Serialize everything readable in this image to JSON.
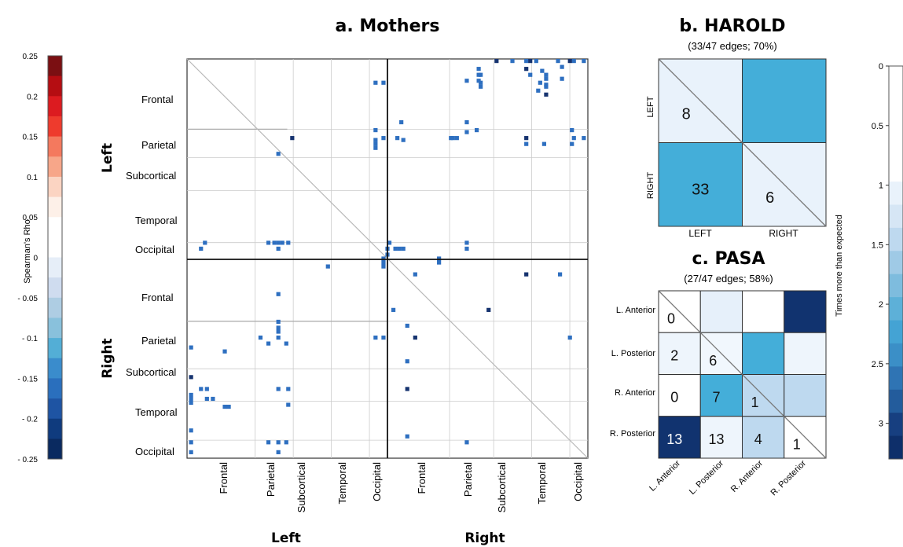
{
  "colors": {
    "matrix_cell": "#2e6fc0",
    "matrix_cell_dark": "#16336f",
    "grid_line": "#cccccc",
    "divider": "#222222"
  },
  "colorbar_left": {
    "label": "Spearman's Rho",
    "ticks": [
      "0.25",
      "0.2",
      "0.15",
      "0.1",
      "0.05",
      "0",
      "- 0.05",
      "- 0.1",
      "- 0.15",
      "- 0.2",
      "- 0.25"
    ],
    "tick_values": [
      0.25,
      0.2,
      0.15,
      0.1,
      0.05,
      0,
      -0.05,
      -0.1,
      -0.15,
      -0.2,
      -0.25
    ],
    "bands": [
      "#7b0f12",
      "#b50d12",
      "#dc1b20",
      "#ee3b2d",
      "#f4795e",
      "#f7a689",
      "#fbd4c2",
      "#fdf0e8",
      "#ffffff",
      "#ffffff",
      "#e6eef8",
      "#cfdcef",
      "#aecde3",
      "#89c1dc",
      "#53aed6",
      "#3a8ccc",
      "#2a6fbd",
      "#1e54a3",
      "#0f3b7e",
      "#0a2a60"
    ]
  },
  "panel_a": {
    "title": "a. Mothers",
    "group_labels": [
      "Left",
      "Right"
    ],
    "row_labels": [
      "Frontal",
      "Parietal",
      "Subcortical",
      "Temporal",
      "Occipital",
      "Frontal",
      "Parietal",
      "Subcortical",
      "Temporal",
      "Occipital"
    ],
    "col_labels": [
      "Frontal",
      "Parietal",
      "Subcortical",
      "Temporal",
      "Occipital",
      "Frontal",
      "Parietal",
      "Subcortical",
      "Temporal",
      "Occipital"
    ],
    "bottom_group_labels": [
      "Left",
      "Right"
    ]
  },
  "chart_data": [
    {
      "type": "heatmap",
      "title": "a. Mothers",
      "description_of_axes": "Row and column groups: Left / Right hemisphere lobes",
      "rows": [
        "Frontal",
        "Parietal",
        "Subcortical",
        "Temporal",
        "Occipital",
        "Frontal",
        "Parietal",
        "Subcortical",
        "Temporal",
        "Occipital"
      ],
      "cols": [
        "Frontal",
        "Parietal",
        "Subcortical",
        "Temporal",
        "Occipital",
        "Frontal",
        "Parietal",
        "Subcortical",
        "Temporal",
        "Occipital"
      ],
      "row_groups": [
        "Left",
        "Right"
      ],
      "col_groups": [
        "Left",
        "Right"
      ],
      "colorbar": {
        "label": "Spearman's Rho",
        "range": [
          -0.25,
          0.25
        ]
      },
      "significant_edges_sample": [
        {
          "rf": 0.015,
          "cf": 0.94,
          "rho": -0.2
        },
        {
          "rf": 0.02,
          "cf": 0.85,
          "rho": -0.25
        },
        {
          "rf": 0.02,
          "cf": 0.73,
          "rho": -0.2
        },
        {
          "rf": 0.0,
          "cf": 0.815,
          "rho": -0.2
        },
        {
          "rf": 0.0,
          "cf": 0.85,
          "rho": -0.2
        },
        {
          "rf": 0.0,
          "cf": 0.875,
          "rho": -0.2
        },
        {
          "rf": 0.0,
          "cf": 0.93,
          "rho": -0.2
        },
        {
          "rf": 0.0,
          "cf": 0.97,
          "rho": -0.2
        },
        {
          "rf": 0.0,
          "cf": 0.995,
          "rho": -0.2
        },
        {
          "rf": 0.025,
          "cf": 0.89,
          "rho": -0.2
        },
        {
          "rf": 0.045,
          "cf": 0.9,
          "rho": -0.2
        },
        {
          "rf": 0.035,
          "cf": 0.735,
          "rho": -0.2
        },
        {
          "rf": 0.055,
          "cf": 0.885,
          "rho": -0.2
        },
        {
          "rf": 0.085,
          "cf": 0.9,
          "rho": -0.25
        },
        {
          "rf": 0.05,
          "cf": 0.7,
          "rho": -0.2
        },
        {
          "rf": 0.05,
          "cf": 0.73,
          "rho": -0.2
        },
        {
          "rf": 0.035,
          "cf": 0.73,
          "rho": -0.2
        },
        {
          "rf": 0.055,
          "cf": 0.735,
          "rho": -0.2
        },
        {
          "rf": 0.065,
          "cf": 0.735,
          "rho": -0.2
        },
        {
          "rf": 0.075,
          "cf": 0.88,
          "rho": -0.2
        },
        {
          "rf": 0.035,
          "cf": 0.9,
          "rho": -0.2
        },
        {
          "rf": 0.06,
          "cf": 0.9,
          "rho": -0.2
        },
        {
          "rf": 0.045,
          "cf": 0.94,
          "rho": -0.2
        },
        {
          "rf": 0.065,
          "cf": 0.9,
          "rho": -0.2
        },
        {
          "rf": 0.0,
          "cf": 0.96,
          "rho": -0.25
        },
        {
          "rf": 0.0,
          "cf": 0.86,
          "rho": -0.25
        },
        {
          "rf": 0.0,
          "cf": 0.775,
          "rho": -0.25
        },
        {
          "rf": 0.055,
          "cf": 0.47,
          "rho": -0.2
        },
        {
          "rf": 0.055,
          "cf": 0.49,
          "rho": -0.2
        },
        {
          "rf": 0.035,
          "cf": 0.86,
          "rho": -0.2
        },
        {
          "rf": 0.175,
          "cf": 0.47,
          "rho": -0.2
        },
        {
          "rf": 0.22,
          "cf": 0.47,
          "rho": -0.2
        },
        {
          "rf": 0.2,
          "cf": 0.47,
          "rho": -0.2
        },
        {
          "rf": 0.21,
          "cf": 0.47,
          "rho": -0.2
        },
        {
          "rf": 0.195,
          "cf": 0.525,
          "rho": -0.2
        },
        {
          "rf": 0.195,
          "cf": 0.49,
          "rho": -0.2
        },
        {
          "rf": 0.2,
          "cf": 0.54,
          "rho": -0.2
        },
        {
          "rf": 0.195,
          "cf": 0.66,
          "rho": -0.2
        },
        {
          "rf": 0.195,
          "cf": 0.665,
          "rho": -0.2
        },
        {
          "rf": 0.195,
          "cf": 0.675,
          "rho": -0.2
        },
        {
          "rf": 0.18,
          "cf": 0.7,
          "rho": -0.2
        },
        {
          "rf": 0.155,
          "cf": 0.7,
          "rho": -0.2
        },
        {
          "rf": 0.175,
          "cf": 0.725,
          "rho": -0.2
        },
        {
          "rf": 0.195,
          "cf": 0.85,
          "rho": -0.25
        },
        {
          "rf": 0.195,
          "cf": 0.97,
          "rho": -0.2
        },
        {
          "rf": 0.21,
          "cf": 0.85,
          "rho": -0.2
        },
        {
          "rf": 0.21,
          "cf": 0.895,
          "rho": -0.2
        },
        {
          "rf": 0.175,
          "cf": 0.965,
          "rho": -0.2
        },
        {
          "rf": 0.195,
          "cf": 0.995,
          "rho": -0.2
        },
        {
          "rf": 0.21,
          "cf": 0.965,
          "rho": -0.2
        },
        {
          "rf": 0.155,
          "cf": 0.535,
          "rho": -0.2
        },
        {
          "rf": 0.195,
          "cf": 0.26,
          "rho": -0.25
        },
        {
          "rf": 0.235,
          "cf": 0.225,
          "rho": -0.2
        },
        {
          "rf": 0.46,
          "cf": 0.04,
          "rho": -0.2
        },
        {
          "rf": 0.46,
          "cf": 0.2,
          "rho": -0.2
        },
        {
          "rf": 0.46,
          "cf": 0.215,
          "rho": -0.2
        },
        {
          "rf": 0.46,
          "cf": 0.225,
          "rho": -0.2
        },
        {
          "rf": 0.46,
          "cf": 0.235,
          "rho": -0.2
        },
        {
          "rf": 0.46,
          "cf": 0.25,
          "rho": -0.2
        },
        {
          "rf": 0.475,
          "cf": 0.03,
          "rho": -0.2
        },
        {
          "rf": 0.475,
          "cf": 0.225,
          "rho": -0.2
        },
        {
          "rf": 0.46,
          "cf": 0.7,
          "rho": -0.2
        },
        {
          "rf": 0.475,
          "cf": 0.7,
          "rho": -0.2
        },
        {
          "rf": 0.46,
          "cf": 0.505,
          "rho": -0.2
        },
        {
          "rf": 0.475,
          "cf": 0.5,
          "rho": -0.2
        },
        {
          "rf": 0.475,
          "cf": 0.52,
          "rho": -0.2
        },
        {
          "rf": 0.475,
          "cf": 0.53,
          "rho": -0.2
        },
        {
          "rf": 0.475,
          "cf": 0.54,
          "rho": -0.2
        },
        {
          "rf": 0.49,
          "cf": 0.5,
          "rho": -0.2
        },
        {
          "rf": 0.5,
          "cf": 0.49,
          "rho": -0.2
        },
        {
          "rf": 0.51,
          "cf": 0.49,
          "rho": -0.2
        },
        {
          "rf": 0.52,
          "cf": 0.49,
          "rho": -0.2
        },
        {
          "rf": 0.52,
          "cf": 0.35,
          "rho": -0.2
        },
        {
          "rf": 0.5,
          "cf": 0.63,
          "rho": -0.2
        },
        {
          "rf": 0.51,
          "cf": 0.63,
          "rho": -0.2
        },
        {
          "rf": 0.54,
          "cf": 0.57,
          "rho": -0.2
        },
        {
          "rf": 0.54,
          "cf": 0.85,
          "rho": -0.25
        },
        {
          "rf": 0.54,
          "cf": 0.935,
          "rho": -0.2
        },
        {
          "rf": 0.59,
          "cf": 0.225,
          "rho": -0.2
        },
        {
          "rf": 0.63,
          "cf": 0.515,
          "rho": -0.2
        },
        {
          "rf": 0.63,
          "cf": 0.755,
          "rho": -0.25
        },
        {
          "rf": 0.66,
          "cf": 0.225,
          "rho": -0.2
        },
        {
          "rf": 0.675,
          "cf": 0.225,
          "rho": -0.2
        },
        {
          "rf": 0.685,
          "cf": 0.225,
          "rho": -0.2
        },
        {
          "rf": 0.67,
          "cf": 0.55,
          "rho": -0.2
        },
        {
          "rf": 0.7,
          "cf": 0.18,
          "rho": -0.2
        },
        {
          "rf": 0.7,
          "cf": 0.225,
          "rho": -0.2
        },
        {
          "rf": 0.7,
          "cf": 0.47,
          "rho": -0.2
        },
        {
          "rf": 0.7,
          "cf": 0.49,
          "rho": -0.2
        },
        {
          "rf": 0.7,
          "cf": 0.96,
          "rho": -0.2
        },
        {
          "rf": 0.7,
          "cf": 0.57,
          "rho": -0.25
        },
        {
          "rf": 0.715,
          "cf": 0.2,
          "rho": -0.2
        },
        {
          "rf": 0.715,
          "cf": 0.245,
          "rho": -0.2
        },
        {
          "rf": 0.725,
          "cf": 0.005,
          "rho": -0.2
        },
        {
          "rf": 0.735,
          "cf": 0.09,
          "rho": -0.2
        },
        {
          "rf": 0.76,
          "cf": 0.55,
          "rho": -0.2
        },
        {
          "rf": 0.8,
          "cf": 0.005,
          "rho": -0.25
        },
        {
          "rf": 0.83,
          "cf": 0.03,
          "rho": -0.2
        },
        {
          "rf": 0.83,
          "cf": 0.045,
          "rho": -0.2
        },
        {
          "rf": 0.83,
          "cf": 0.225,
          "rho": -0.2
        },
        {
          "rf": 0.83,
          "cf": 0.25,
          "rho": -0.2
        },
        {
          "rf": 0.83,
          "cf": 0.55,
          "rho": -0.25
        },
        {
          "rf": 0.845,
          "cf": 0.005,
          "rho": -0.2
        },
        {
          "rf": 0.855,
          "cf": 0.005,
          "rho": -0.2
        },
        {
          "rf": 0.855,
          "cf": 0.045,
          "rho": -0.2
        },
        {
          "rf": 0.855,
          "cf": 0.06,
          "rho": -0.2
        },
        {
          "rf": 0.865,
          "cf": 0.005,
          "rho": -0.2
        },
        {
          "rf": 0.87,
          "cf": 0.25,
          "rho": -0.2
        },
        {
          "rf": 0.875,
          "cf": 0.09,
          "rho": -0.2
        },
        {
          "rf": 0.875,
          "cf": 0.1,
          "rho": -0.2
        },
        {
          "rf": 0.935,
          "cf": 0.005,
          "rho": -0.2
        },
        {
          "rf": 0.95,
          "cf": 0.55,
          "rho": -0.2
        },
        {
          "rf": 0.965,
          "cf": 0.2,
          "rho": -0.2
        },
        {
          "rf": 0.965,
          "cf": 0.225,
          "rho": -0.2
        },
        {
          "rf": 0.965,
          "cf": 0.245,
          "rho": -0.2
        },
        {
          "rf": 0.965,
          "cf": 0.005,
          "rho": -0.2
        },
        {
          "rf": 0.965,
          "cf": 0.7,
          "rho": -0.2
        },
        {
          "rf": 0.99,
          "cf": 0.225,
          "rho": -0.2
        },
        {
          "rf": 0.99,
          "cf": 0.005,
          "rho": -0.2
        }
      ]
    },
    {
      "type": "heatmap",
      "title": "b. HAROLD",
      "subtitle": "(33/47 edges; 70%)",
      "rows": [
        "LEFT",
        "RIGHT"
      ],
      "cols": [
        "LEFT",
        "RIGHT"
      ],
      "cells": [
        {
          "row": "LEFT",
          "col": "LEFT",
          "label": "8",
          "expected_ratio": 0.8
        },
        {
          "row": "LEFT",
          "col": "RIGHT",
          "label": "",
          "expected_ratio": 2.0
        },
        {
          "row": "RIGHT",
          "col": "LEFT",
          "label": "33",
          "expected_ratio": 2.0
        },
        {
          "row": "RIGHT",
          "col": "RIGHT",
          "label": "6",
          "expected_ratio": 0.8
        }
      ]
    },
    {
      "type": "heatmap",
      "title": "c. PASA",
      "subtitle": "(27/47 edges; 58%)",
      "rows": [
        "L. Anterior",
        "L. Posterior",
        "R. Anterior",
        "R. Posterior"
      ],
      "cols": [
        "L. Anterior",
        "L. Posterior",
        "R. Anterior",
        "R. Posterior"
      ],
      "cells": [
        {
          "row": "L. Anterior",
          "col": "L. Anterior",
          "label": "0",
          "expected_ratio": 0
        },
        {
          "row": "L. Anterior",
          "col": "L. Posterior",
          "label": "",
          "expected_ratio": 0.8
        },
        {
          "row": "L. Anterior",
          "col": "R. Anterior",
          "label": "",
          "expected_ratio": 0
        },
        {
          "row": "L. Anterior",
          "col": "R. Posterior",
          "label": "",
          "expected_ratio": 3.2
        },
        {
          "row": "L. Posterior",
          "col": "L. Anterior",
          "label": "2",
          "expected_ratio": 0.7
        },
        {
          "row": "L. Posterior",
          "col": "L. Posterior",
          "label": "6",
          "expected_ratio": 0.6
        },
        {
          "row": "L. Posterior",
          "col": "R. Anterior",
          "label": "",
          "expected_ratio": 2.0
        },
        {
          "row": "L. Posterior",
          "col": "R. Posterior",
          "label": "",
          "expected_ratio": 0.7
        },
        {
          "row": "R. Anterior",
          "col": "L. Anterior",
          "label": "0",
          "expected_ratio": 0
        },
        {
          "row": "R. Anterior",
          "col": "L. Posterior",
          "label": "7",
          "expected_ratio": 2.0
        },
        {
          "row": "R. Anterior",
          "col": "R. Anterior",
          "label": "1",
          "expected_ratio": 1.0
        },
        {
          "row": "R. Anterior",
          "col": "R. Posterior",
          "label": "",
          "expected_ratio": 1.0
        },
        {
          "row": "R. Posterior",
          "col": "L. Anterior",
          "label": "13",
          "expected_ratio": 3.2
        },
        {
          "row": "R. Posterior",
          "col": "L. Posterior",
          "label": "13",
          "expected_ratio": 0.7
        },
        {
          "row": "R. Posterior",
          "col": "R. Anterior",
          "label": "4",
          "expected_ratio": 1.0
        },
        {
          "row": "R. Posterior",
          "col": "R. Posterior",
          "label": "1",
          "expected_ratio": 0.3
        }
      ]
    },
    {
      "type": "heatmap",
      "title": "",
      "colorbar": {
        "label": "Times more than expected",
        "ticks": [
          "0",
          "0.5",
          "1",
          "1.5",
          "2",
          "2.5",
          "3"
        ],
        "tick_values": [
          0,
          0.5,
          1,
          1.5,
          2,
          2.5,
          3
        ],
        "bands": [
          "#ffffff",
          "#ffffff",
          "#ffffff",
          "#ffffff",
          "#ffffff",
          "#e9f2fb",
          "#d6e6f5",
          "#bed9ef",
          "#9fcae6",
          "#7ebcde",
          "#5db0d8",
          "#44a3d4",
          "#3b8fc7",
          "#2f74b4",
          "#235c9c",
          "#173f80",
          "#0e2f6a"
        ]
      }
    }
  ],
  "panel_b": {
    "title": "b. HAROLD",
    "subtitle": "(33/47 edges; 70%)",
    "row_labels": [
      "LEFT",
      "RIGHT"
    ],
    "col_labels": [
      "LEFT",
      "RIGHT"
    ],
    "cells": [
      {
        "label": "8",
        "color": "#e9f2fb"
      },
      {
        "label": "",
        "color": "#44aed9"
      },
      {
        "label": "33",
        "color": "#44aed9"
      },
      {
        "label": "6",
        "color": "#e9f2fb"
      }
    ]
  },
  "panel_c": {
    "title": "c. PASA",
    "subtitle": "(27/47 edges; 58%)",
    "row_labels": [
      "L. Anterior",
      "L. Posterior",
      "R. Anterior",
      "R. Posterior"
    ],
    "col_labels": [
      "L. Anterior",
      "L. Posterior",
      "R. Anterior",
      "R. Posterior"
    ],
    "cells": [
      {
        "label": "0",
        "color": "#ffffff"
      },
      {
        "label": "",
        "color": "#e6f0fa"
      },
      {
        "label": "",
        "color": "#ffffff"
      },
      {
        "label": "",
        "color": "#11336f"
      },
      {
        "label": "2",
        "color": "#eef5fc"
      },
      {
        "label": "6",
        "color": "#f1f7fd"
      },
      {
        "label": "",
        "color": "#44aed9"
      },
      {
        "label": "",
        "color": "#eef5fc"
      },
      {
        "label": "0",
        "color": "#ffffff"
      },
      {
        "label": "7",
        "color": "#44aed9"
      },
      {
        "label": "1",
        "color": "#bed9ef"
      },
      {
        "label": "",
        "color": "#bed9ef"
      },
      {
        "label": "13",
        "color": "#11336f",
        "text_color": "#ffffff"
      },
      {
        "label": "13",
        "color": "#eef5fc"
      },
      {
        "label": "4",
        "color": "#bed9ef"
      },
      {
        "label": "1",
        "color": "#ffffff"
      }
    ]
  },
  "colorbar_right": {
    "label": "Times more than expected",
    "ticks": [
      "0",
      "0.5",
      "1",
      "1.5",
      "2",
      "2.5",
      "3"
    ]
  }
}
